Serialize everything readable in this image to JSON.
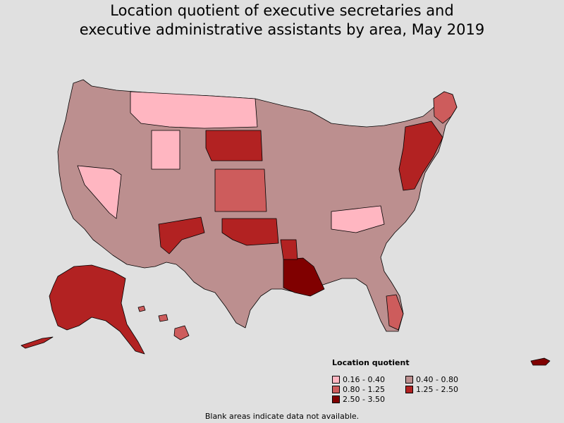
{
  "title_line1": "Location quotient of executive secretaries and",
  "title_line2": "executive administrative assistants by area, May 2019",
  "legend": {
    "title": "Location quotient",
    "items": [
      {
        "label": "0.16 - 0.40",
        "color": "#ffb6c1"
      },
      {
        "label": "0.40 - 0.80",
        "color": "#bc8f8f"
      },
      {
        "label": "0.80 - 1.25",
        "color": "#cd5c5c"
      },
      {
        "label": "1.25 - 2.50",
        "color": "#b22222"
      },
      {
        "label": "2.50 - 3.50",
        "color": "#800000"
      }
    ]
  },
  "footnote": "Blank areas indicate data not available.",
  "map_data": {
    "type": "choropleth",
    "border_color": "#000000",
    "regions": [
      {
        "name": "contiguous-us",
        "class": "0.40 - 0.80"
      },
      {
        "name": "montana-dakotas",
        "class": "0.16 - 0.40"
      },
      {
        "name": "nevada",
        "class": "0.16 - 0.40"
      },
      {
        "name": "wyoming-west",
        "class": "0.16 - 0.40"
      },
      {
        "name": "nebraska-south-dakota",
        "class": "1.25 - 2.50"
      },
      {
        "name": "kansas-west",
        "class": "0.80 - 1.25"
      },
      {
        "name": "oklahoma",
        "class": "1.25 - 2.50"
      },
      {
        "name": "new-mexico-east",
        "class": "1.25 - 2.50"
      },
      {
        "name": "louisiana",
        "class": "2.50 - 3.50"
      },
      {
        "name": "mississippi-west",
        "class": "1.25 - 2.50"
      },
      {
        "name": "northeast-corridor",
        "class": "1.25 - 2.50"
      },
      {
        "name": "maine",
        "class": "0.80 - 1.25"
      },
      {
        "name": "alaska",
        "class": "1.25 - 2.50"
      },
      {
        "name": "hawaii",
        "class": "0.80 - 1.25"
      },
      {
        "name": "puerto-rico",
        "class": "2.50 - 3.50"
      },
      {
        "name": "appalachia",
        "class": "0.16 - 0.40"
      },
      {
        "name": "florida-south",
        "class": "0.80 - 1.25"
      }
    ]
  }
}
